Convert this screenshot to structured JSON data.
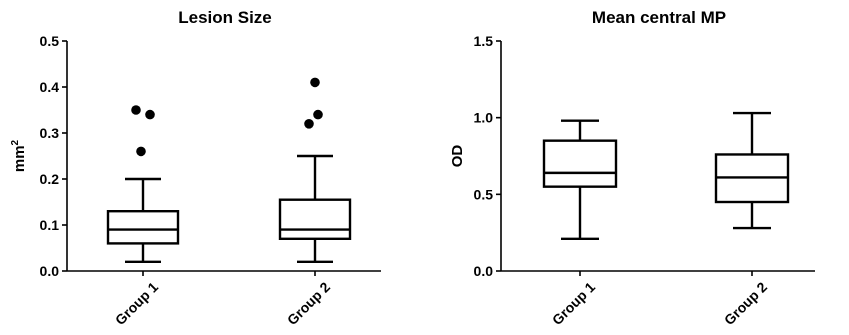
{
  "chart_data": [
    {
      "type": "box",
      "title": "Lesion Size",
      "ylabel": "mm",
      "ylabel_superscript": "2",
      "xlabel": "",
      "ylim": [
        0,
        0.5
      ],
      "yticks": [
        0.0,
        0.1,
        0.2,
        0.3,
        0.4,
        0.5
      ],
      "ytick_labels": [
        "0.0",
        "0.1",
        "0.2",
        "0.3",
        "0.4",
        "0.5"
      ],
      "categories": [
        "Group 1",
        "Group 2"
      ],
      "boxes": [
        {
          "category": "Group 1",
          "whisker_low": 0.02,
          "q1": 0.06,
          "median": 0.09,
          "q3": 0.13,
          "whisker_high": 0.2,
          "outliers": [
            0.26,
            0.34,
            0.35
          ]
        },
        {
          "category": "Group 2",
          "whisker_low": 0.02,
          "q1": 0.07,
          "median": 0.09,
          "q3": 0.155,
          "whisker_high": 0.25,
          "outliers": [
            0.32,
            0.34,
            0.41
          ]
        }
      ]
    },
    {
      "type": "box",
      "title": "Mean central  MP",
      "ylabel": "OD",
      "ylabel_superscript": "",
      "xlabel": "",
      "ylim": [
        0,
        1.5
      ],
      "yticks": [
        0.0,
        0.5,
        1.0,
        1.5
      ],
      "ytick_labels": [
        "0.0",
        "0.5",
        "1.0",
        "1.5"
      ],
      "categories": [
        "Group 1",
        "Group 2"
      ],
      "boxes": [
        {
          "category": "Group 1",
          "whisker_low": 0.21,
          "q1": 0.55,
          "median": 0.64,
          "q3": 0.85,
          "whisker_high": 0.98,
          "outliers": []
        },
        {
          "category": "Group 2",
          "whisker_low": 0.28,
          "q1": 0.45,
          "median": 0.61,
          "q3": 0.76,
          "whisker_high": 1.03,
          "outliers": []
        }
      ]
    }
  ]
}
